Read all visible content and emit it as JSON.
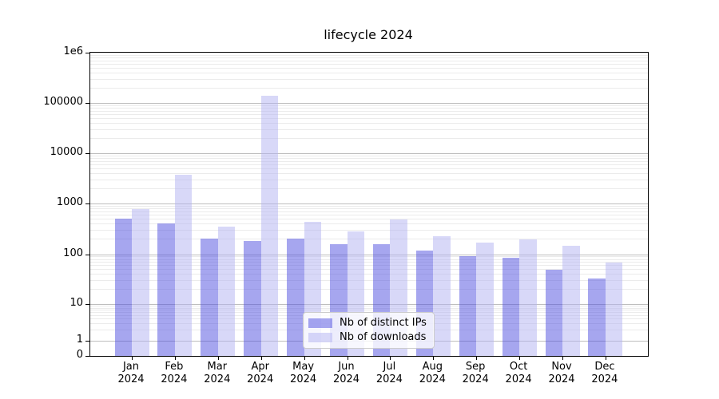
{
  "chart_data": {
    "type": "bar",
    "title": "lifecycle 2024",
    "yscale": "symlog",
    "grid": true,
    "ylim": [
      0,
      1000000
    ],
    "legend_position": "lower center",
    "year": "2024",
    "months": [
      "Jan",
      "Feb",
      "Mar",
      "Apr",
      "May",
      "Jun",
      "Jul",
      "Aug",
      "Sep",
      "Oct",
      "Nov",
      "Dec"
    ],
    "y_ticks": [
      {
        "label": "0",
        "value": 0
      },
      {
        "label": "1",
        "value": 1
      },
      {
        "label": "10",
        "value": 10
      },
      {
        "label": "100",
        "value": 100
      },
      {
        "label": "1000",
        "value": 1000
      },
      {
        "label": "10000",
        "value": 10000
      },
      {
        "label": "100000",
        "value": 100000
      },
      {
        "label": "1e6",
        "value": 1000000
      }
    ],
    "series": [
      {
        "name": "Nb of distinct IPs",
        "color": "rgba(77, 77, 224, 0.5)",
        "hex_on_white": "#a6a6f0",
        "values": [
          500,
          410,
          205,
          185,
          205,
          155,
          155,
          120,
          92,
          85,
          49,
          33
        ]
      },
      {
        "name": "Nb of downloads",
        "color": "rgba(177, 177, 241, 0.5)",
        "hex_on_white": "#d8d8f8",
        "values": [
          780,
          3800,
          355,
          140000,
          430,
          280,
          490,
          230,
          168,
          195,
          145,
          69
        ]
      }
    ]
  },
  "colors": {
    "grid_major": "#bdbdbd",
    "grid_minor": "#ebebeb",
    "spine": "#000000",
    "legend_border": "#cccccc"
  }
}
